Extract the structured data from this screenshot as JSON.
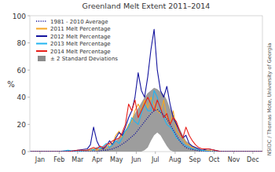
{
  "chart_data": {
    "type": "line",
    "title": "Greenland Melt Extent 2011–2014",
    "y_label": "%",
    "credit": "NSIDC / Thomas Mote, University of Georgia",
    "legend": "upper left",
    "grid": false,
    "xlim": [
      0,
      365
    ],
    "ylim": [
      0,
      100
    ],
    "yticks": [
      0,
      20,
      40,
      60,
      80,
      100
    ],
    "xticks": [
      {
        "value": 16,
        "label": "Jan"
      },
      {
        "value": 46,
        "label": "Feb"
      },
      {
        "value": 75,
        "label": "Mar"
      },
      {
        "value": 106,
        "label": "Apr"
      },
      {
        "value": 136,
        "label": "May"
      },
      {
        "value": 167,
        "label": "Jun"
      },
      {
        "value": 197,
        "label": "Jul"
      },
      {
        "value": 228,
        "label": "Aug"
      },
      {
        "value": 259,
        "label": "Sep"
      },
      {
        "value": 289,
        "label": "Oct"
      },
      {
        "value": 320,
        "label": "Nov"
      },
      {
        "value": 350,
        "label": "Dec"
      }
    ],
    "x": [
      1,
      15,
      30,
      45,
      60,
      75,
      90,
      95,
      100,
      105,
      110,
      115,
      120,
      125,
      130,
      135,
      140,
      145,
      150,
      155,
      160,
      165,
      170,
      175,
      180,
      185,
      190,
      195,
      200,
      205,
      210,
      215,
      220,
      225,
      230,
      235,
      240,
      245,
      250,
      255,
      260,
      265,
      270,
      280,
      290,
      300,
      315,
      330,
      345,
      365
    ],
    "band": {
      "name": "± 2 Standard Deviations",
      "color": "#8c8c8c",
      "upper": [
        0,
        0,
        0,
        0,
        0,
        0,
        1,
        1,
        2,
        2,
        2,
        3,
        3,
        4,
        6,
        8,
        10,
        13,
        16,
        20,
        24,
        28,
        32,
        36,
        40,
        43,
        45,
        47,
        46,
        44,
        42,
        38,
        32,
        27,
        22,
        17,
        12,
        8,
        6,
        4,
        3,
        2,
        1,
        1,
        0,
        0,
        0,
        0,
        0,
        0
      ],
      "lower": [
        0,
        0,
        0,
        0,
        0,
        0,
        0,
        0,
        0,
        0,
        0,
        0,
        0,
        0,
        0,
        0,
        0,
        0,
        0,
        0,
        0,
        0,
        0,
        0,
        1,
        3,
        8,
        12,
        14,
        12,
        8,
        4,
        1,
        0,
        0,
        0,
        0,
        0,
        0,
        0,
        0,
        0,
        0,
        0,
        0,
        0,
        0,
        0,
        0,
        0
      ]
    },
    "series": [
      {
        "name": "1981 - 2010 Average",
        "color": "#1a1a9c",
        "line_style": "dotted",
        "values": [
          0,
          0,
          0,
          0,
          0,
          0,
          0,
          0,
          0,
          0,
          0.5,
          1,
          1,
          1.5,
          2,
          3,
          4,
          5.5,
          7,
          9,
          11,
          13,
          16,
          19,
          22,
          25,
          28,
          30,
          31,
          29,
          27,
          24,
          20,
          16,
          12,
          8,
          5,
          3,
          2,
          1.5,
          1,
          0.5,
          0,
          0,
          0,
          0,
          0,
          0,
          0,
          0
        ]
      },
      {
        "name": "2011 Melt Percentage",
        "color": "#f5a623",
        "line_style": "solid",
        "values": [
          0,
          0,
          0,
          0,
          0,
          0,
          1,
          1,
          2,
          1,
          2,
          2,
          3,
          5,
          6,
          12,
          15,
          10,
          14,
          20,
          22,
          30,
          35,
          30,
          38,
          32,
          40,
          35,
          30,
          28,
          38,
          25,
          20,
          30,
          15,
          12,
          10,
          6,
          5,
          3,
          2,
          1,
          1,
          1,
          0,
          0,
          0,
          0,
          0,
          0
        ]
      },
      {
        "name": "2012 Melt Percentage",
        "color": "#14149e",
        "line_style": "solid",
        "values": [
          0,
          0,
          0,
          0,
          0,
          1,
          2,
          5,
          18,
          8,
          3,
          2,
          4,
          8,
          5,
          10,
          14,
          12,
          18,
          25,
          30,
          40,
          58,
          45,
          40,
          55,
          75,
          90,
          60,
          45,
          40,
          48,
          35,
          25,
          20,
          15,
          10,
          12,
          6,
          4,
          3,
          2,
          1,
          2,
          1,
          0,
          0,
          0,
          0,
          0
        ]
      },
      {
        "name": "2013 Melt Percentage",
        "color": "#22b5f0",
        "line_style": "solid",
        "values": [
          0,
          0,
          0,
          0,
          1,
          0,
          1,
          2,
          1,
          3,
          2,
          4,
          6,
          3,
          5,
          8,
          6,
          10,
          15,
          18,
          25,
          22,
          20,
          28,
          35,
          30,
          30,
          45,
          40,
          30,
          25,
          20,
          18,
          15,
          10,
          8,
          6,
          4,
          3,
          2,
          2,
          1,
          1,
          0,
          0,
          0,
          0,
          0,
          0,
          0
        ]
      },
      {
        "name": "2014 Melt Percentage",
        "color": "#e8201a",
        "line_style": "solid",
        "values": [
          0,
          0,
          0,
          0,
          0,
          1,
          1,
          2,
          3,
          2,
          4,
          3,
          5,
          6,
          8,
          9,
          10,
          14,
          20,
          35,
          30,
          38,
          25,
          30,
          35,
          40,
          35,
          30,
          38,
          32,
          25,
          28,
          20,
          25,
          22,
          15,
          10,
          18,
          12,
          8,
          5,
          3,
          2,
          2,
          1,
          0,
          0,
          0,
          0,
          0
        ]
      }
    ]
  }
}
